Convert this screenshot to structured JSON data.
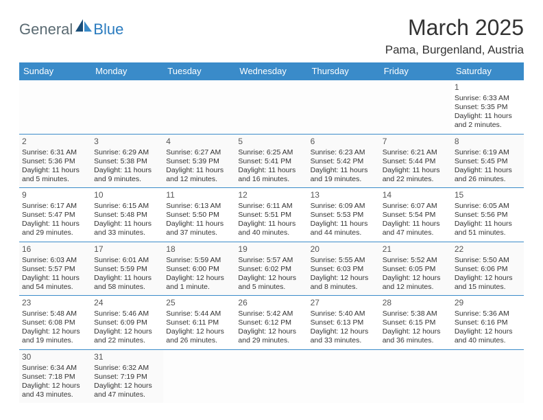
{
  "logo": {
    "general": "General",
    "blue": "Blue"
  },
  "title": "March 2025",
  "location": "Pama, Burgenland, Austria",
  "colors": {
    "header_bg": "#3a8bc9",
    "header_text": "#ffffff",
    "border": "#3a8bc9",
    "logo_gray": "#5a6a72",
    "logo_blue": "#2a7bbf"
  },
  "weekdays": [
    "Sunday",
    "Monday",
    "Tuesday",
    "Wednesday",
    "Thursday",
    "Friday",
    "Saturday"
  ],
  "cells": [
    [
      null,
      null,
      null,
      null,
      null,
      null,
      {
        "n": "1",
        "sr": "6:33 AM",
        "ss": "5:35 PM",
        "dl": "11 hours and 2 minutes."
      }
    ],
    [
      {
        "n": "2",
        "sr": "6:31 AM",
        "ss": "5:36 PM",
        "dl": "11 hours and 5 minutes."
      },
      {
        "n": "3",
        "sr": "6:29 AM",
        "ss": "5:38 PM",
        "dl": "11 hours and 9 minutes."
      },
      {
        "n": "4",
        "sr": "6:27 AM",
        "ss": "5:39 PM",
        "dl": "11 hours and 12 minutes."
      },
      {
        "n": "5",
        "sr": "6:25 AM",
        "ss": "5:41 PM",
        "dl": "11 hours and 16 minutes."
      },
      {
        "n": "6",
        "sr": "6:23 AM",
        "ss": "5:42 PM",
        "dl": "11 hours and 19 minutes."
      },
      {
        "n": "7",
        "sr": "6:21 AM",
        "ss": "5:44 PM",
        "dl": "11 hours and 22 minutes."
      },
      {
        "n": "8",
        "sr": "6:19 AM",
        "ss": "5:45 PM",
        "dl": "11 hours and 26 minutes."
      }
    ],
    [
      {
        "n": "9",
        "sr": "6:17 AM",
        "ss": "5:47 PM",
        "dl": "11 hours and 29 minutes."
      },
      {
        "n": "10",
        "sr": "6:15 AM",
        "ss": "5:48 PM",
        "dl": "11 hours and 33 minutes."
      },
      {
        "n": "11",
        "sr": "6:13 AM",
        "ss": "5:50 PM",
        "dl": "11 hours and 37 minutes."
      },
      {
        "n": "12",
        "sr": "6:11 AM",
        "ss": "5:51 PM",
        "dl": "11 hours and 40 minutes."
      },
      {
        "n": "13",
        "sr": "6:09 AM",
        "ss": "5:53 PM",
        "dl": "11 hours and 44 minutes."
      },
      {
        "n": "14",
        "sr": "6:07 AM",
        "ss": "5:54 PM",
        "dl": "11 hours and 47 minutes."
      },
      {
        "n": "15",
        "sr": "6:05 AM",
        "ss": "5:56 PM",
        "dl": "11 hours and 51 minutes."
      }
    ],
    [
      {
        "n": "16",
        "sr": "6:03 AM",
        "ss": "5:57 PM",
        "dl": "11 hours and 54 minutes."
      },
      {
        "n": "17",
        "sr": "6:01 AM",
        "ss": "5:59 PM",
        "dl": "11 hours and 58 minutes."
      },
      {
        "n": "18",
        "sr": "5:59 AM",
        "ss": "6:00 PM",
        "dl": "12 hours and 1 minute."
      },
      {
        "n": "19",
        "sr": "5:57 AM",
        "ss": "6:02 PM",
        "dl": "12 hours and 5 minutes."
      },
      {
        "n": "20",
        "sr": "5:55 AM",
        "ss": "6:03 PM",
        "dl": "12 hours and 8 minutes."
      },
      {
        "n": "21",
        "sr": "5:52 AM",
        "ss": "6:05 PM",
        "dl": "12 hours and 12 minutes."
      },
      {
        "n": "22",
        "sr": "5:50 AM",
        "ss": "6:06 PM",
        "dl": "12 hours and 15 minutes."
      }
    ],
    [
      {
        "n": "23",
        "sr": "5:48 AM",
        "ss": "6:08 PM",
        "dl": "12 hours and 19 minutes."
      },
      {
        "n": "24",
        "sr": "5:46 AM",
        "ss": "6:09 PM",
        "dl": "12 hours and 22 minutes."
      },
      {
        "n": "25",
        "sr": "5:44 AM",
        "ss": "6:11 PM",
        "dl": "12 hours and 26 minutes."
      },
      {
        "n": "26",
        "sr": "5:42 AM",
        "ss": "6:12 PM",
        "dl": "12 hours and 29 minutes."
      },
      {
        "n": "27",
        "sr": "5:40 AM",
        "ss": "6:13 PM",
        "dl": "12 hours and 33 minutes."
      },
      {
        "n": "28",
        "sr": "5:38 AM",
        "ss": "6:15 PM",
        "dl": "12 hours and 36 minutes."
      },
      {
        "n": "29",
        "sr": "5:36 AM",
        "ss": "6:16 PM",
        "dl": "12 hours and 40 minutes."
      }
    ],
    [
      {
        "n": "30",
        "sr": "6:34 AM",
        "ss": "7:18 PM",
        "dl": "12 hours and 43 minutes."
      },
      {
        "n": "31",
        "sr": "6:32 AM",
        "ss": "7:19 PM",
        "dl": "12 hours and 47 minutes."
      },
      null,
      null,
      null,
      null,
      null
    ]
  ],
  "labels": {
    "sunrise": "Sunrise:",
    "sunset": "Sunset:",
    "daylight": "Daylight:"
  }
}
